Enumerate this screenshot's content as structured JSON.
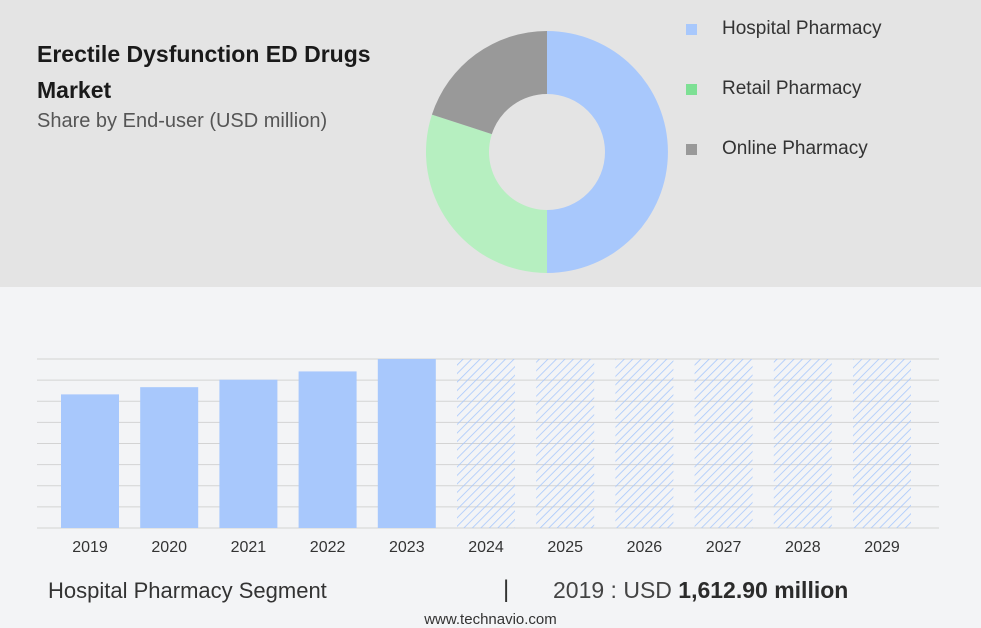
{
  "chart_data": [
    {
      "type": "pie",
      "title": "Erectile Dysfunction ED Drugs Market",
      "subtitle": "Share by End-user (USD million)",
      "legend_position": "right",
      "categories": [
        "Hospital Pharmacy",
        "Retail Pharmacy",
        "Online Pharmacy"
      ],
      "values": [
        50,
        30,
        20
      ],
      "colors": [
        "#a8c8fc",
        "#b6efc0",
        "#999999"
      ],
      "legend_colors": [
        "#a8c8fc",
        "#7de094",
        "#999999"
      ]
    },
    {
      "type": "bar",
      "categories": [
        "2019",
        "2020",
        "2021",
        "2022",
        "2023",
        "2024",
        "2025",
        "2026",
        "2027",
        "2028",
        "2029"
      ],
      "values": [
        1612.9,
        1700,
        1790,
        1890,
        2040,
        2040,
        2040,
        2040,
        2040,
        2040,
        2040
      ],
      "forecast_from": "2024",
      "bar_color": "#a8c8fc",
      "forecast_pattern": "hatched",
      "grid": true
    }
  ],
  "footer": {
    "segment": "Hospital Pharmacy Segment",
    "divider": "|",
    "year_label": "2019 : USD ",
    "value": "1,612.90 million"
  },
  "source": "www.technavio.com"
}
